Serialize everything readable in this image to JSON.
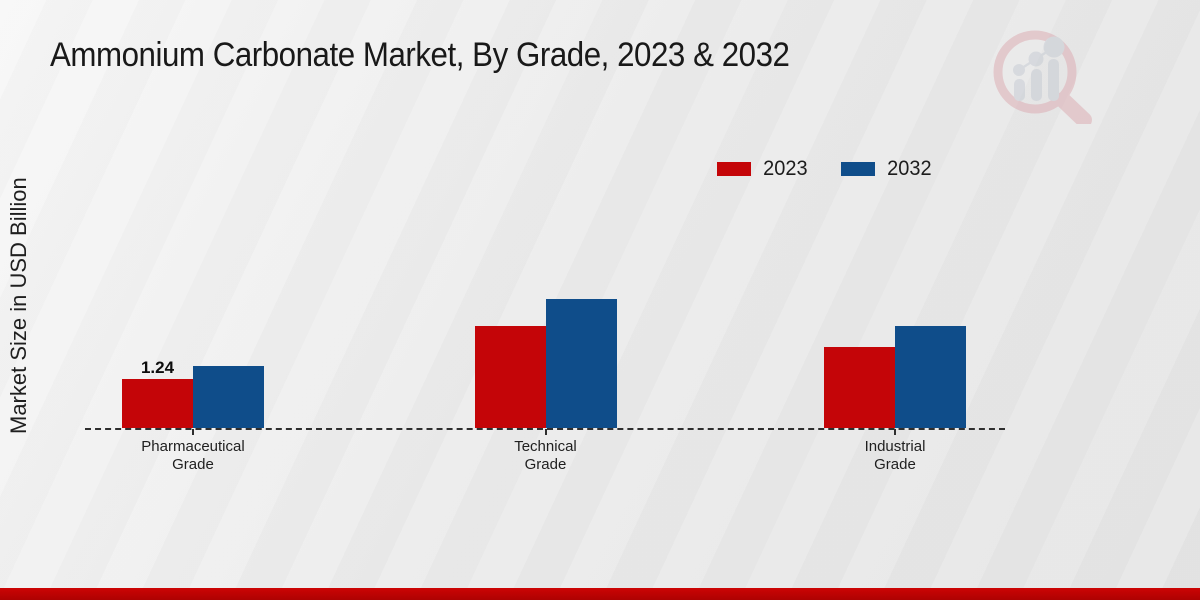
{
  "title": "Ammonium Carbonate Market, By Grade, 2023 & 2032",
  "y_axis_label": "Market Size in USD Billion",
  "legend": {
    "items": [
      {
        "label": "2023",
        "color": "#c40508"
      },
      {
        "label": "2032",
        "color": "#0f4d8a"
      }
    ]
  },
  "chart_data": {
    "type": "bar",
    "title": "Ammonium Carbonate Market, By Grade, 2023 & 2032",
    "ylabel": "Market Size in USD Billion",
    "xlabel": "",
    "categories": [
      "Pharmaceutical Grade",
      "Technical Grade",
      "Industrial Grade"
    ],
    "series": [
      {
        "name": "2023",
        "color": "#c40508",
        "values": [
          1.24,
          2.58,
          2.05
        ]
      },
      {
        "name": "2032",
        "color": "#0f4d8a",
        "values": [
          1.57,
          3.27,
          2.58
        ]
      }
    ],
    "point_labels": [
      {
        "series_index": 0,
        "category_index": 0,
        "text": "1.24"
      }
    ],
    "baseline_style": "dashed",
    "grid": false,
    "legend_position": "top-right",
    "units": "USD Billion"
  },
  "watermark_icon": "magnifier-bar-chart-logo",
  "footer": {
    "bar_color_top": "#cc0404",
    "bar_color_bottom": "#ad0202"
  }
}
